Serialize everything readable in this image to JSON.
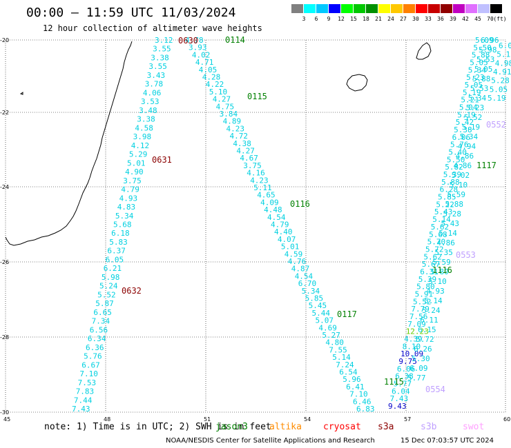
{
  "header": {
    "title": "00:00 – 11:59 UTC 11/03/2024",
    "subtitle": "12 hour collection of altimeter wave heights"
  },
  "colorbar": {
    "unit": "(ft)",
    "colors": [
      "#808080",
      "#00ffff",
      "#00c8ff",
      "#0000ff",
      "#00ff00",
      "#00c800",
      "#009000",
      "#ffff00",
      "#ffc800",
      "#ff8000",
      "#ff0000",
      "#c80000",
      "#900000",
      "#c000c0",
      "#e070ff",
      "#c0c0ff",
      "#000000"
    ],
    "labels": [
      "3",
      "6",
      "9",
      "12",
      "15",
      "18",
      "21",
      "24",
      "27",
      "30",
      "33",
      "36",
      "39",
      "42",
      "45",
      "70"
    ]
  },
  "axes": {
    "lon_ticks": [
      "45",
      "48",
      "51",
      "54",
      "57",
      "60"
    ],
    "lat_ticks": [
      "-20",
      "-22",
      "-24",
      "-26",
      "-28",
      "-30"
    ]
  },
  "passes": [
    {
      "label": "0630",
      "color": "#8b0000"
    },
    {
      "label": "0631",
      "color": "#8b0000"
    },
    {
      "label": "0632",
      "color": "#8b0000"
    },
    {
      "label": "0114",
      "color": "#008000"
    },
    {
      "label": "0115",
      "color": "#008000"
    },
    {
      "label": "0116",
      "color": "#008000"
    },
    {
      "label": "0117",
      "color": "#008000"
    },
    {
      "label": "1115",
      "color": "#008000"
    },
    {
      "label": "1116",
      "color": "#008000"
    },
    {
      "label": "1117",
      "color": "#008000"
    },
    {
      "label": "0552",
      "color": "#c0a0ff"
    },
    {
      "label": "0553",
      "color": "#c0a0ff"
    },
    {
      "label": "0554",
      "color": "#c0a0ff"
    }
  ],
  "tracks": {
    "track_0630": [
      "3.12",
      "3.55",
      "3.38",
      "3.55",
      "3.43",
      "3.78",
      "4.06",
      "3.53",
      "3.48",
      "3.38",
      "4.58",
      "3.98",
      "4.12",
      "5.29",
      "5.01",
      "4.90",
      "3.75",
      "4.79",
      "4.93",
      "4.83",
      "5.34",
      "5.68",
      "6.18",
      "5.83",
      "6.37",
      "6.05",
      "6.21",
      "5.98",
      "5.24",
      "5.52",
      "5.87",
      "6.65",
      "7.34",
      "6.56",
      "6.34",
      "6.36",
      "5.76",
      "6.67",
      "7.10",
      "7.53",
      "7.83",
      "7.44",
      "7.43"
    ],
    "track_0114": [
      "4.78",
      "3.93",
      "4.02",
      "4.71",
      "4.05",
      "4.28",
      "4.22",
      "5.10",
      "4.27",
      "4.75",
      "3.84",
      "4.89",
      "4.23",
      "4.72",
      "4.38",
      "4.27",
      "4.67",
      "3.75",
      "4.16",
      "4.23",
      "5.11",
      "4.65",
      "4.09",
      "4.48",
      "4.54",
      "4.79",
      "4.40",
      "4.07",
      "5.01",
      "4.59",
      "4.76",
      "4.87",
      "4.54",
      "6.70",
      "5.34",
      "5.85",
      "5.45",
      "5.44",
      "5.07",
      "4.69",
      "5.27",
      "4.80",
      "7.55",
      "5.14",
      "7.24",
      "6.54",
      "5.96",
      "6.41",
      "7.10",
      "6.46",
      "6.83"
    ],
    "track_1115": [
      "9.43",
      "7.43",
      "6.04",
      "5.77",
      "6.38",
      "6.06",
      "9.75",
      "10.09",
      "8.10",
      "4.39",
      "12.23",
      "7.09",
      "7.56",
      "7.79",
      "5.52",
      "5.91",
      "5.80",
      "5.39",
      "6.31",
      "5.67",
      "5.62",
      "5.72",
      "5.70",
      "5.68",
      "5.62",
      "5.14",
      "5.43",
      "5.22",
      "5.85",
      "6.28",
      "5.88",
      "5.39",
      "5.82",
      "5.50",
      "5.40",
      "5.76",
      "6.06",
      "5.38",
      "5.42",
      "5.19",
      "5.04",
      "5.21",
      "5.19",
      "5.05",
      "5.23",
      "5.34",
      "5.05",
      "5.88",
      "5.50",
      "5.09"
    ],
    "track_0552": [
      "6.96",
      "5.98",
      "5.53",
      "5.05",
      "5.88",
      "5.53",
      "5.34",
      "5.23",
      "5.52",
      "5.19",
      "5.34",
      "4.94",
      "4.86",
      "4.86",
      "5.02",
      "5.10",
      "5.59",
      "5.88",
      "5.28",
      "5.43",
      "5.14",
      "4.86",
      "5.35",
      "5.59",
      "5.80",
      "5.10",
      "4.93",
      "5.14",
      "5.24",
      "6.11",
      "6.15",
      "5.72",
      "6.26",
      "5.30",
      "6.09",
      "5.77"
    ],
    "track_0552_right": [
      "6.0",
      "5.12",
      "4.98",
      "4.91",
      "5.28",
      "5.05",
      "5.19"
    ]
  },
  "footer": {
    "note": "note: 1) Time is in UTC; 2) SWH is in feet",
    "satellites": [
      {
        "name": "jason3",
        "color": "#008000"
      },
      {
        "name": "altika",
        "color": "#ff8c00"
      },
      {
        "name": "cryosat",
        "color": "#ff0000"
      },
      {
        "name": "s3a",
        "color": "#8b0000"
      },
      {
        "name": "s3b",
        "color": "#c0a0ff"
      },
      {
        "name": "swot",
        "color": "#ffa0ff"
      }
    ],
    "credit": "NOAA/NESDIS Center for Satellite Applications and Research",
    "timestamp": "15 Dec 07:03:57 UTC 2024"
  }
}
